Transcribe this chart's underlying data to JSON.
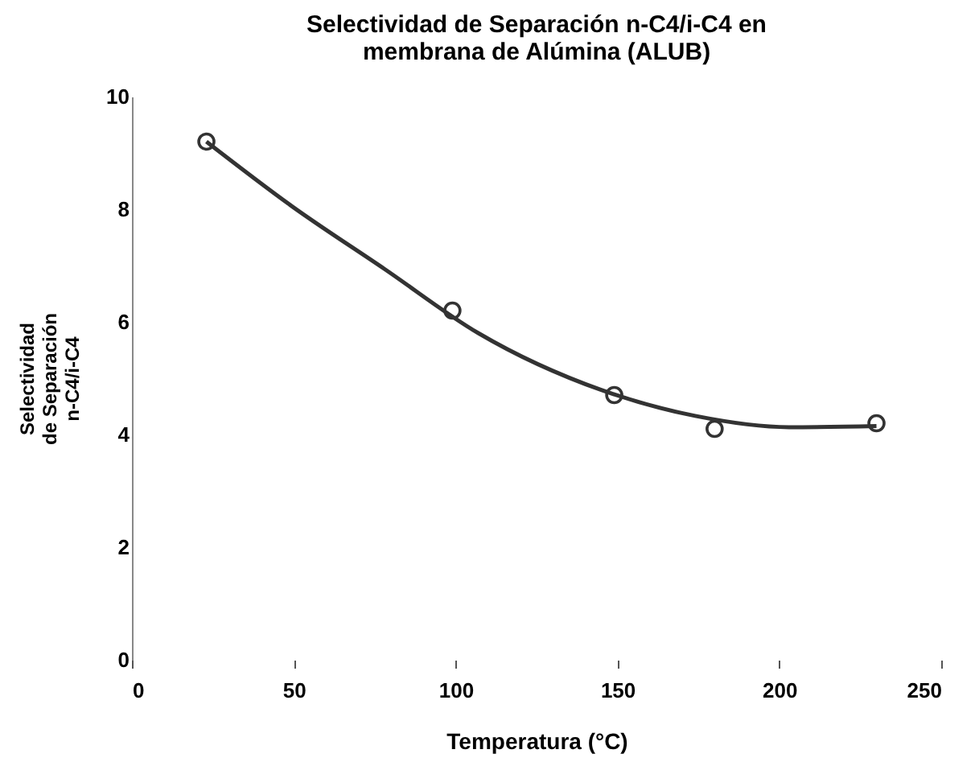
{
  "chart_data": {
    "type": "scatter",
    "title": "Selectividad de Separación n-C4/i-C4 en membrana de Alúmina (ALUB)",
    "xlabel": "Temperatura (°C)",
    "ylabel": "Selectividad de Separación n-C4/i-C4",
    "xlim": [
      0,
      250
    ],
    "xticks": [
      0,
      50,
      100,
      150,
      200,
      250
    ],
    "ylim": [
      0,
      10
    ],
    "yticks": [
      0,
      2,
      4,
      6,
      8,
      10
    ],
    "grid": false,
    "marker": "circle",
    "series": [
      {
        "color": "#333333",
        "x": [
          23,
          99,
          149,
          180,
          230
        ],
        "values": [
          9.2,
          6.2,
          4.7,
          4.1,
          4.2
        ]
      },
      {
        "type": "line",
        "color": "#333333",
        "line_style": "solid",
        "marker": "none",
        "x": [
          23,
          49,
          78,
          107,
          145,
          174,
          203,
          230
        ],
        "values": [
          9.2,
          8.07,
          6.94,
          5.8,
          4.79,
          4.33,
          4.13,
          4.15
        ]
      }
    ]
  }
}
